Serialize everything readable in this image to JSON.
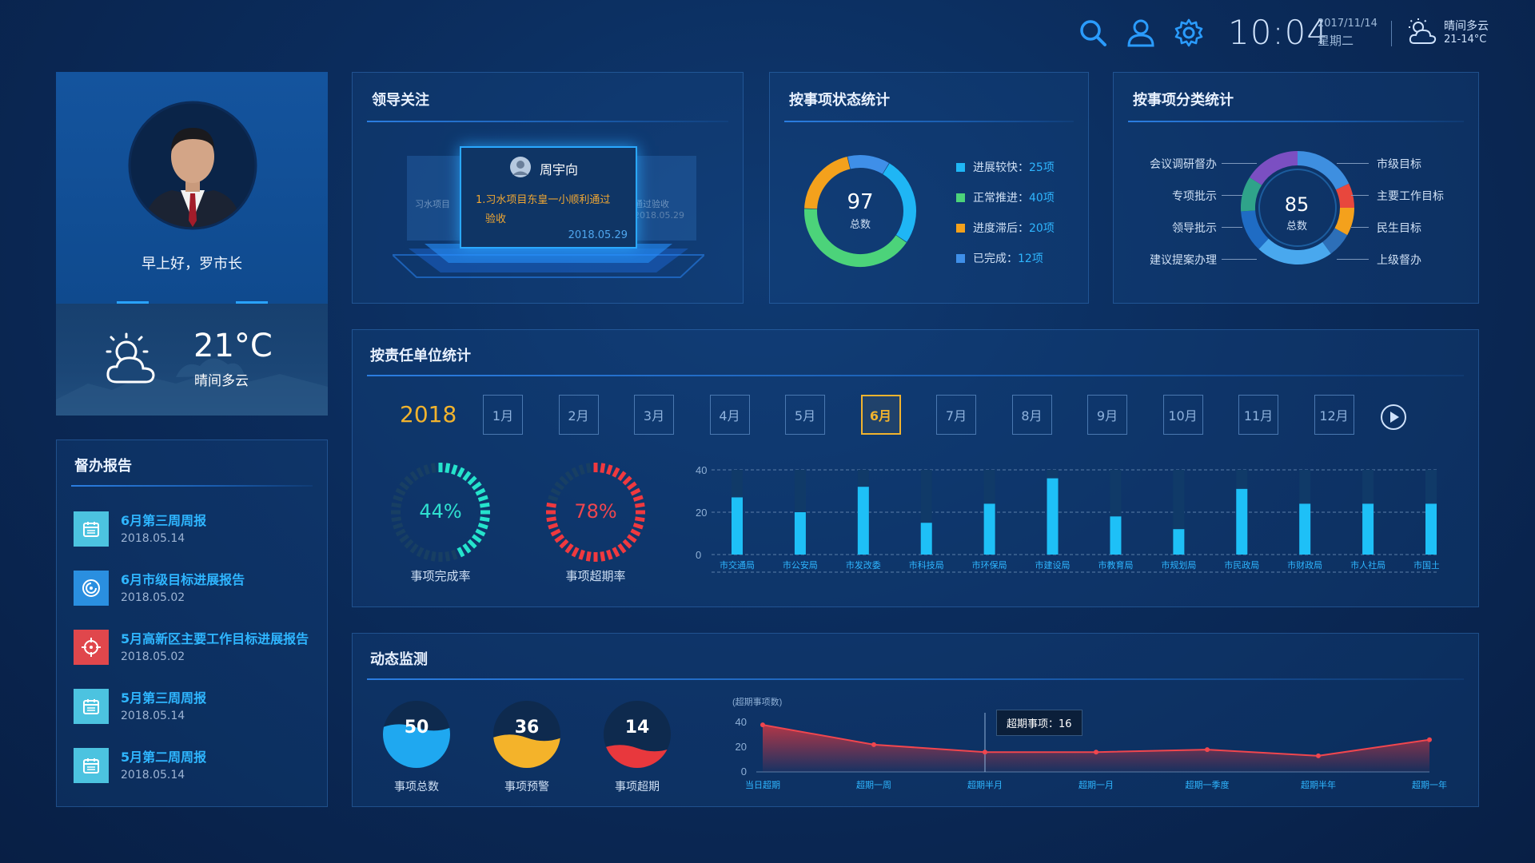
{
  "header": {
    "time": "10:04",
    "date": "2017/11/14",
    "weekday": "星期二",
    "weather": "晴间多云",
    "temp_range": "21-14°C"
  },
  "profile": {
    "greeting": "早上好，罗市长",
    "temperature": "21°C",
    "weather": "晴间多云"
  },
  "reports": {
    "title": "督办报告",
    "items": [
      {
        "title": "6月第三周周报",
        "date": "2018.05.14",
        "icon": "calendar-icon",
        "color": "#4cc3e0"
      },
      {
        "title": "6月市级目标进展报告",
        "date": "2018.05.02",
        "icon": "target-spiral-icon",
        "color": "#2a8fe0"
      },
      {
        "title": "5月高新区主要工作目标进展报告",
        "date": "2018.05.02",
        "icon": "crosshair-icon",
        "color": "#e0474c"
      },
      {
        "title": "5月第三周周报",
        "date": "2018.05.14",
        "icon": "calendar-icon",
        "color": "#4cc3e0"
      },
      {
        "title": "5月第二周周报",
        "date": "2018.05.14",
        "icon": "calendar-icon",
        "color": "#4cc3e0"
      }
    ]
  },
  "leader": {
    "title": "领导关注",
    "card_name": "周宇向",
    "card_text_1": "1.习水项目东皇一小顺利通过",
    "card_text_2": "验收",
    "card_date": "2018.05.29",
    "side_left": "习水项目",
    "side_right": "通过验收",
    "side_right_date": "2018.05.29"
  },
  "status": {
    "title": "按事项状态统计",
    "total": "97",
    "total_label": "总数",
    "items": [
      {
        "label": "进展较快：",
        "value": "25项",
        "color": "#1fb6f5",
        "count": 25
      },
      {
        "label": "正常推进：",
        "value": "40项",
        "color": "#4cd37a",
        "count": 40
      },
      {
        "label": "进度滞后：",
        "value": "20项",
        "color": "#f4a11c",
        "count": 20
      },
      {
        "label": "已完成：",
        "value": "12项",
        "color": "#3f8fe8",
        "count": 12
      }
    ]
  },
  "classify": {
    "title": "按事项分类统计",
    "total": "85",
    "total_label": "总数",
    "left_labels": [
      "会议调研督办",
      "专项批示",
      "领导批示",
      "建议提案办理"
    ],
    "right_labels": [
      "市级目标",
      "主要工作目标",
      "民生目标",
      "上级督办"
    ]
  },
  "unit": {
    "title": "按责任单位统计",
    "year": "2018",
    "months": [
      "1月",
      "2月",
      "3月",
      "4月",
      "5月",
      "6月",
      "7月",
      "8月",
      "9月",
      "10月",
      "11月",
      "12月"
    ],
    "active_month": "6月",
    "completion_rate": "44%",
    "completion_label": "事项完成率",
    "completion_value": 0.44,
    "overdue_rate": "78%",
    "overdue_label": "事项超期率",
    "overdue_value": 0.78
  },
  "monitor": {
    "title": "动态监测",
    "bubbles": [
      {
        "value": "50",
        "label": "事项总数",
        "color": "#1fa8f0",
        "fill": 0.6
      },
      {
        "value": "36",
        "label": "事项预警",
        "color": "#f4b32a",
        "fill": 0.45
      },
      {
        "value": "14",
        "label": "事项超期",
        "color": "#e8383d",
        "fill": 0.3
      }
    ],
    "tooltip": "超期事项：16"
  },
  "colors": {
    "accent": "#2fb6ff",
    "bar": "#1ec0f7",
    "gold": "#f1b32e",
    "red": "#e8383d"
  },
  "chart_data": [
    {
      "type": "bar",
      "categories": [
        "市交通局",
        "市公安局",
        "市发改委",
        "市科技局",
        "市环保局",
        "市建设局",
        "市教育局",
        "市规划局",
        "市民政局",
        "市财政局",
        "市人社局",
        "市国土局"
      ],
      "values": [
        27,
        20,
        32,
        15,
        24,
        36,
        18,
        12,
        31,
        24,
        24,
        24
      ],
      "ylim": [
        0,
        40
      ],
      "yticks": [
        "0",
        "20",
        "40"
      ],
      "grid": true
    },
    {
      "type": "area",
      "categories": [
        "当日超期",
        "超期一周",
        "超期半月",
        "超期一月",
        "超期一季度",
        "超期半年",
        "超期一年"
      ],
      "values": [
        38,
        22,
        16,
        16,
        18,
        13,
        26
      ],
      "ylabel": "(超期事项数)",
      "ylim": [
        0,
        40
      ],
      "yticks": [
        "0",
        "20",
        "40"
      ]
    }
  ]
}
